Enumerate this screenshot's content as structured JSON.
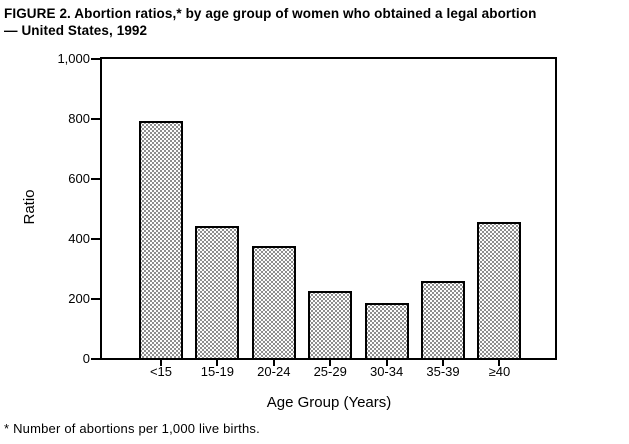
{
  "figure": {
    "title": "FIGURE 2. Abortion ratios,* by age group of women who obtained a legal abortion\n— United States, 1992",
    "footnote": "* Number of abortions per 1,000 live births."
  },
  "chart_data": {
    "type": "bar",
    "title": "FIGURE 2. Abortion ratios, by age group of women who obtained a legal abortion — United States, 1992",
    "xlabel": "Age Group (Years)",
    "ylabel": "Ratio",
    "categories": [
      "<15",
      "15-19",
      "20-24",
      "25-29",
      "30-34",
      "35-39",
      "≥40"
    ],
    "values": [
      791,
      442,
      376,
      223,
      184,
      258,
      454
    ],
    "ylim": [
      0,
      1000
    ],
    "ytick_values": [
      0,
      200,
      400,
      600,
      800,
      1000
    ],
    "ytick_labels": [
      "0",
      "200",
      "400",
      "600",
      "800",
      "1,000"
    ],
    "grid": false,
    "legend": "none",
    "bar_fill": "black stipple dot pattern on white",
    "colors": {
      "axis": "#000000",
      "text": "#000000",
      "background": "#ffffff"
    }
  }
}
